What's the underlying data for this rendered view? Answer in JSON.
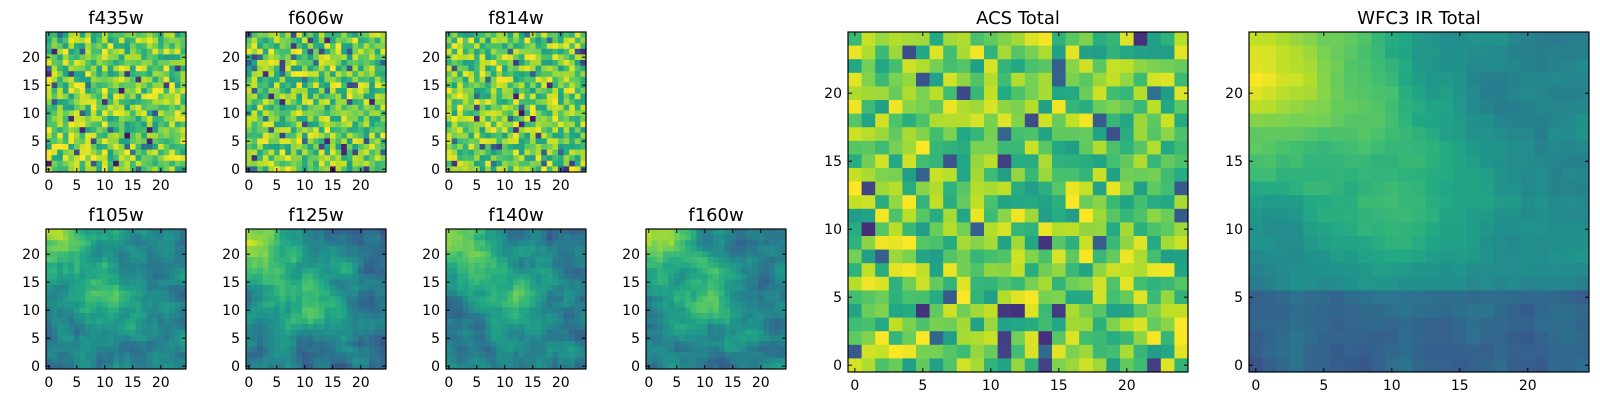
{
  "chart_data": [
    {
      "type": "heatmap",
      "title": "f435w",
      "grid_size": 25,
      "xticks": [
        0,
        5,
        10,
        15,
        20
      ],
      "yticks": [
        0,
        5,
        10,
        15,
        20
      ],
      "xlim": [
        -0.5,
        24.5
      ],
      "ylim": [
        -0.5,
        24.5
      ],
      "colormap": "viridis",
      "pattern": "noise",
      "seed": 11
    },
    {
      "type": "heatmap",
      "title": "f606w",
      "grid_size": 25,
      "xticks": [
        0,
        5,
        10,
        15,
        20
      ],
      "yticks": [
        0,
        5,
        10,
        15,
        20
      ],
      "xlim": [
        -0.5,
        24.5
      ],
      "ylim": [
        -0.5,
        24.5
      ],
      "colormap": "viridis",
      "pattern": "noise",
      "seed": 23
    },
    {
      "type": "heatmap",
      "title": "f814w",
      "grid_size": 25,
      "xticks": [
        0,
        5,
        10,
        15,
        20
      ],
      "yticks": [
        0,
        5,
        10,
        15,
        20
      ],
      "xlim": [
        -0.5,
        24.5
      ],
      "ylim": [
        -0.5,
        24.5
      ],
      "colormap": "viridis",
      "pattern": "noise",
      "seed": 37
    },
    {
      "type": "heatmap",
      "title": "f105w",
      "grid_size": 25,
      "xticks": [
        0,
        5,
        10,
        15,
        20
      ],
      "yticks": [
        0,
        5,
        10,
        15,
        20
      ],
      "xlim": [
        -0.5,
        24.5
      ],
      "ylim": [
        -0.5,
        24.5
      ],
      "colormap": "viridis",
      "pattern": "ir",
      "seed": 41
    },
    {
      "type": "heatmap",
      "title": "f125w",
      "grid_size": 25,
      "xticks": [
        0,
        5,
        10,
        15,
        20
      ],
      "yticks": [
        0,
        5,
        10,
        15,
        20
      ],
      "xlim": [
        -0.5,
        24.5
      ],
      "ylim": [
        -0.5,
        24.5
      ],
      "colormap": "viridis",
      "pattern": "ir",
      "seed": 53
    },
    {
      "type": "heatmap",
      "title": "f140w",
      "grid_size": 25,
      "xticks": [
        0,
        5,
        10,
        15,
        20
      ],
      "yticks": [
        0,
        5,
        10,
        15,
        20
      ],
      "xlim": [
        -0.5,
        24.5
      ],
      "ylim": [
        -0.5,
        24.5
      ],
      "colormap": "viridis",
      "pattern": "ir",
      "seed": 67
    },
    {
      "type": "heatmap",
      "title": "f160w",
      "grid_size": 25,
      "xticks": [
        0,
        5,
        10,
        15,
        20
      ],
      "yticks": [
        0,
        5,
        10,
        15,
        20
      ],
      "xlim": [
        -0.5,
        24.5
      ],
      "ylim": [
        -0.5,
        24.5
      ],
      "colormap": "viridis",
      "pattern": "ir",
      "seed": 71
    },
    {
      "type": "heatmap",
      "title": "ACS Total",
      "grid_size": 25,
      "xticks": [
        0,
        5,
        10,
        15,
        20
      ],
      "yticks": [
        0,
        5,
        10,
        15,
        20
      ],
      "xlim": [
        -0.5,
        24.5
      ],
      "ylim": [
        -0.5,
        24.5
      ],
      "colormap": "viridis",
      "pattern": "noise",
      "seed": 83
    },
    {
      "type": "heatmap",
      "title": "WFC3 IR Total",
      "grid_size": 25,
      "xticks": [
        0,
        5,
        10,
        15,
        20
      ],
      "yticks": [
        0,
        5,
        10,
        15,
        20
      ],
      "xlim": [
        -0.5,
        24.5
      ],
      "ylim": [
        -0.5,
        24.5
      ],
      "colormap": "viridis",
      "pattern": "irtotal",
      "seed": 97
    }
  ]
}
